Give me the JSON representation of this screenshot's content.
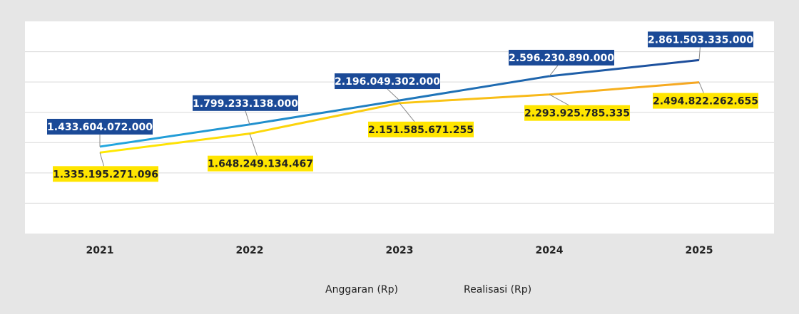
{
  "chart_data": {
    "type": "line",
    "categories": [
      "2021",
      "2022",
      "2023",
      "2024",
      "2025"
    ],
    "series": [
      {
        "name": "Anggaran (Rp)",
        "color": "#1d4b99",
        "values": [
          1433604072000,
          1799233138000,
          2196049302000,
          2596230890000,
          2861503335000
        ],
        "value_labels": [
          "1.433.604.072.000",
          "1.799.233.138.000",
          "2.196.049.302.000",
          "2.596.230.890.000",
          "2.861.503.335.000"
        ]
      },
      {
        "name": "Realisasi (Rp)",
        "color": "#f5a623",
        "values": [
          1335195271096,
          1648249134467,
          2151585671255,
          2293925785335,
          2494822262655
        ],
        "value_labels": [
          "1.335.195.271.096",
          "1.648.249.134.467",
          "2.151.585.671.255",
          "2.293.925.785.335",
          "2.494.822.262.655"
        ]
      }
    ],
    "ylim": [
      0,
      3500000000000
    ],
    "yticks": [
      0,
      500000000000,
      1000000000000,
      1500000000000,
      2000000000000,
      2500000000000,
      3000000000000,
      3500000000000
    ],
    "grid": true
  }
}
